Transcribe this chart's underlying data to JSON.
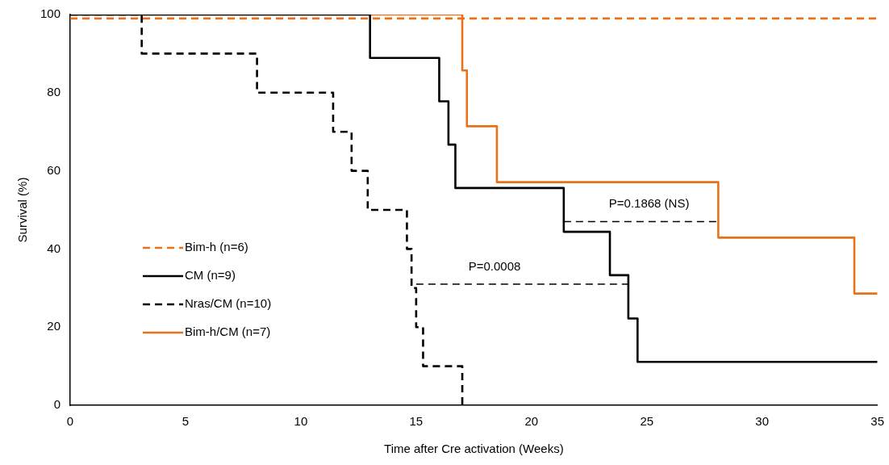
{
  "chart_data": {
    "type": "step",
    "xlabel": "Time after Cre activation (Weeks)",
    "ylabel": "Survival (%)",
    "xlim": [
      0,
      35
    ],
    "ylim": [
      0,
      100
    ],
    "xticks": [
      0,
      5,
      10,
      15,
      20,
      25,
      30,
      35
    ],
    "yticks": [
      0,
      20,
      40,
      60,
      80,
      100
    ],
    "legend": "bottom left",
    "marker": "none",
    "series": [
      {
        "name": "Bim-h (n=6)",
        "color": "#e8711a",
        "line_style": "dashed",
        "x": [
          0,
          35
        ],
        "values": [
          99,
          99
        ]
      },
      {
        "name": "CM (n=9)",
        "color": "#000000",
        "line_style": "solid",
        "x": [
          0,
          13,
          16,
          16.4,
          16.7,
          21.4,
          23.4,
          24.2,
          24.6,
          35
        ],
        "values": [
          100,
          88.9,
          77.8,
          66.7,
          55.6,
          44.4,
          33.3,
          22.2,
          11.1,
          11.1
        ]
      },
      {
        "name": "Nras/CM (n=10)",
        "color": "#000000",
        "line_style": "dashed",
        "x": [
          0,
          3.1,
          8.1,
          11.4,
          12.2,
          12.9,
          14.6,
          14.8,
          15,
          15.3,
          17
        ],
        "values": [
          100,
          90,
          80,
          70,
          60,
          50,
          40,
          30,
          20,
          10,
          0
        ]
      },
      {
        "name": "Bim-h/CM (n=7)",
        "color": "#e8711a",
        "line_style": "solid",
        "x": [
          0,
          17,
          17.2,
          18.5,
          28.1,
          34,
          35
        ],
        "values": [
          100,
          85.7,
          71.4,
          57.1,
          42.9,
          28.6,
          28.6
        ]
      },
      {
        "type": "line",
        "color": "#000000",
        "line_style": "dashed",
        "x": [
          15,
          24.2
        ],
        "values": [
          31,
          31
        ]
      },
      {
        "type": "line",
        "color": "#000000",
        "line_style": "dashed",
        "x": [
          21.4,
          28.1
        ],
        "values": [
          47,
          47
        ]
      }
    ],
    "annotations": [
      {
        "text": "P=0.0008",
        "x": 18.4,
        "y": 31
      },
      {
        "text": "P=0.1868 (NS)",
        "x": 25.1,
        "y": 47
      }
    ]
  }
}
